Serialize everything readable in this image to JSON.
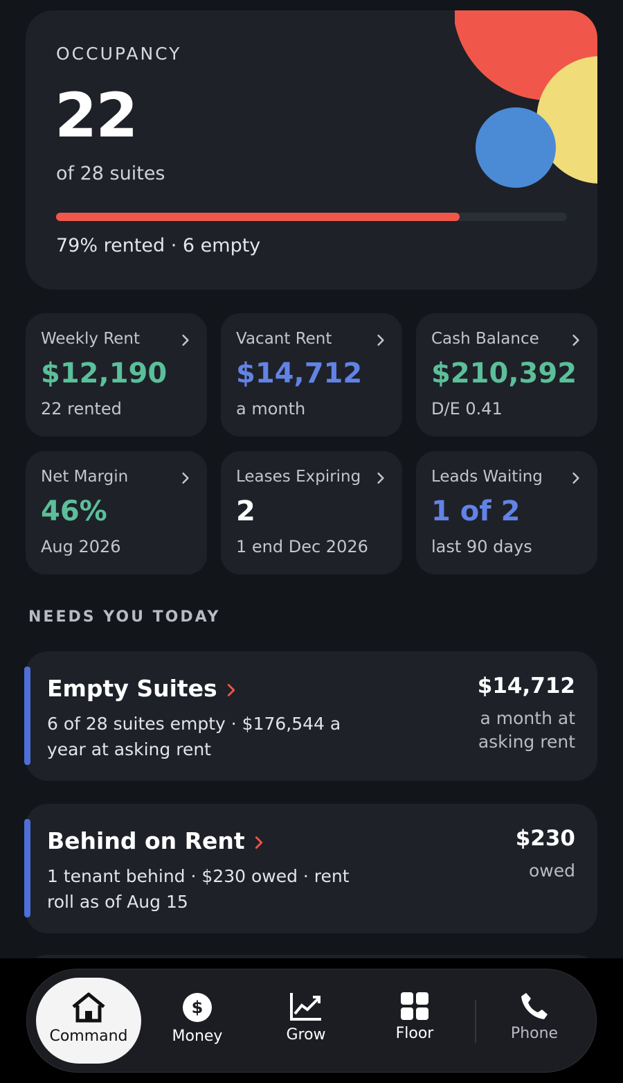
{
  "occupancy": {
    "label": "OCCUPANCY",
    "value": "22",
    "sub": "of 28 suites",
    "progress": {
      "value": 79,
      "label": "79% rented · 6 empty"
    }
  },
  "tiles": [
    {
      "title": "Weekly Rent",
      "value": "$12,190",
      "sub": "22 rented",
      "tone": "green"
    },
    {
      "title": "Vacant Rent",
      "value": "$14,712",
      "sub": "a month",
      "tone": "blue"
    },
    {
      "title": "Cash Balance",
      "value": "$210,392",
      "sub": "D/E 0.41",
      "tone": "green"
    },
    {
      "title": "Net Margin",
      "value": "46%",
      "sub": "Aug 2026",
      "tone": "green"
    },
    {
      "title": "Leases Expiring",
      "value": "2",
      "sub": "1 end Dec 2026",
      "tone": "white"
    },
    {
      "title": "Leads Waiting",
      "value": "1 of 2",
      "sub": "last 90 days",
      "tone": "blue"
    }
  ],
  "section_title": "NEEDS YOU TODAY",
  "alerts": [
    {
      "title": "Empty Suites",
      "detail": "6 of 28 suites empty · $176,544 a year at asking rent",
      "amount": "$14,712",
      "amount_note": "a month at asking rent"
    },
    {
      "title": "Behind on Rent",
      "detail": "1 tenant behind · $230 owed · rent roll as of Aug 15",
      "amount": "$230",
      "amount_note": "owed"
    }
  ],
  "nav": [
    {
      "label": "Command",
      "active": true
    },
    {
      "label": "Money",
      "active": false
    },
    {
      "label": "Grow",
      "active": false
    },
    {
      "label": "Floor",
      "active": false
    },
    {
      "label": "Phone",
      "active": false
    }
  ]
}
